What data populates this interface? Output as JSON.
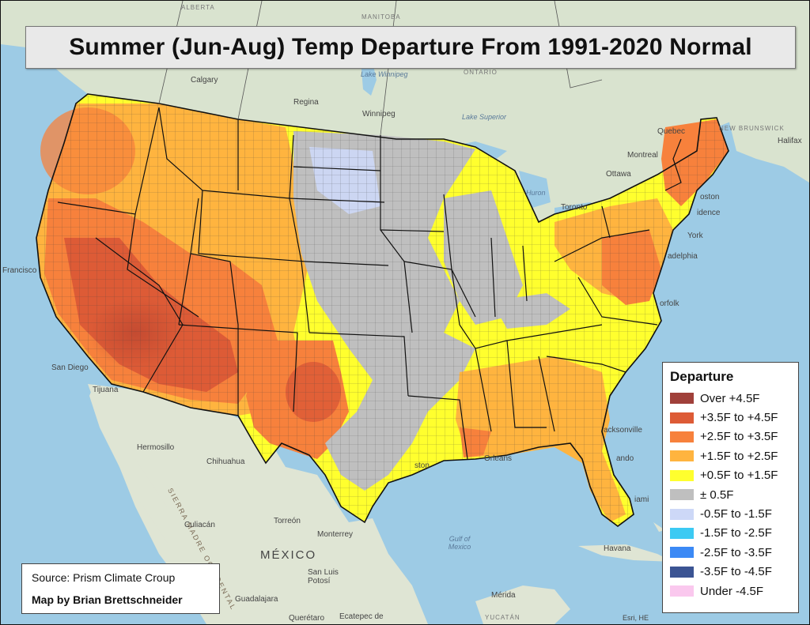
{
  "title": "Summer (Jun-Aug) Temp Departure From 1991-2020 Normal",
  "legend": {
    "title": "Departure",
    "items": [
      {
        "label": "Over +4.5F",
        "color": "#a0403a"
      },
      {
        "label": "+3.5F to +4.5F",
        "color": "#dd5b36"
      },
      {
        "label": "+2.5F to +3.5F",
        "color": "#f7813c"
      },
      {
        "label": "+1.5F to +2.5F",
        "color": "#ffb43f"
      },
      {
        "label": "+0.5F to +1.5F",
        "color": "#ffff2e"
      },
      {
        "label": "± 0.5F",
        "color": "#bfbfbf"
      },
      {
        "label": "-0.5F to -1.5F",
        "color": "#cdd8f7"
      },
      {
        "label": "-1.5F to -2.5F",
        "color": "#3ccaf3"
      },
      {
        "label": "-2.5F to -3.5F",
        "color": "#3b89f5"
      },
      {
        "label": "-3.5F to -4.5F",
        "color": "#3b5493"
      },
      {
        "label": "Under -4.5F",
        "color": "#fac8ee"
      }
    ]
  },
  "credits": {
    "source": "Source: Prism Climate Croup",
    "author": "Map by Brian Brettschneider"
  },
  "basemap_labels": {
    "alberta": "ALBERTA",
    "manitoba": "MANITOBA",
    "ontario": "ONTARIO",
    "calgary": "Calgary",
    "regina": "Regina",
    "winnipeg": "Winnipeg",
    "lake_winnipeg": "Lake Winnipeg",
    "lake_superior": "Lake Superior",
    "lake_huron": "Huron",
    "montreal": "Montreal",
    "ottawa": "Ottawa",
    "quebec": "Quebec",
    "toronto": "Toronto",
    "new_brunswick": "NEW BRUNSWICK",
    "halifax": "Halifax",
    "boston": "oston",
    "providence": "idence",
    "new_york": "York",
    "philadelphia": "adelphia",
    "norfolk": "orfolk",
    "jacksonville": "acksonville",
    "orlando": "ando",
    "miami": "iami",
    "new_orleans": "Orleans",
    "houston": "ston",
    "san_francisco": "Francisco",
    "san_diego": "San Diego",
    "tijuana": "Tijuana",
    "hermosillo": "Hermosillo",
    "chihuahua": "Chihuahua",
    "sierra_madre": "SIERRA MADRE OCCIDENTAL",
    "culiacan": "Culiacán",
    "torreon": "Torreón",
    "monterrey": "Monterrey",
    "mexico": "MÉXICO",
    "san_luis_potosi": "San Luis Potosí",
    "guadalajara": "Guadalajara",
    "queretaro": "Querétaro",
    "ecatepec": "Ecatepec de",
    "gulf_of_mexico": "Gulf of Mexico",
    "havana": "Havana",
    "merida": "Mérida",
    "yucatan": "YUCATÁN",
    "esri": "Esri, HE"
  },
  "map_layer": {
    "name": "county temperature departure shading (CONUS)"
  }
}
